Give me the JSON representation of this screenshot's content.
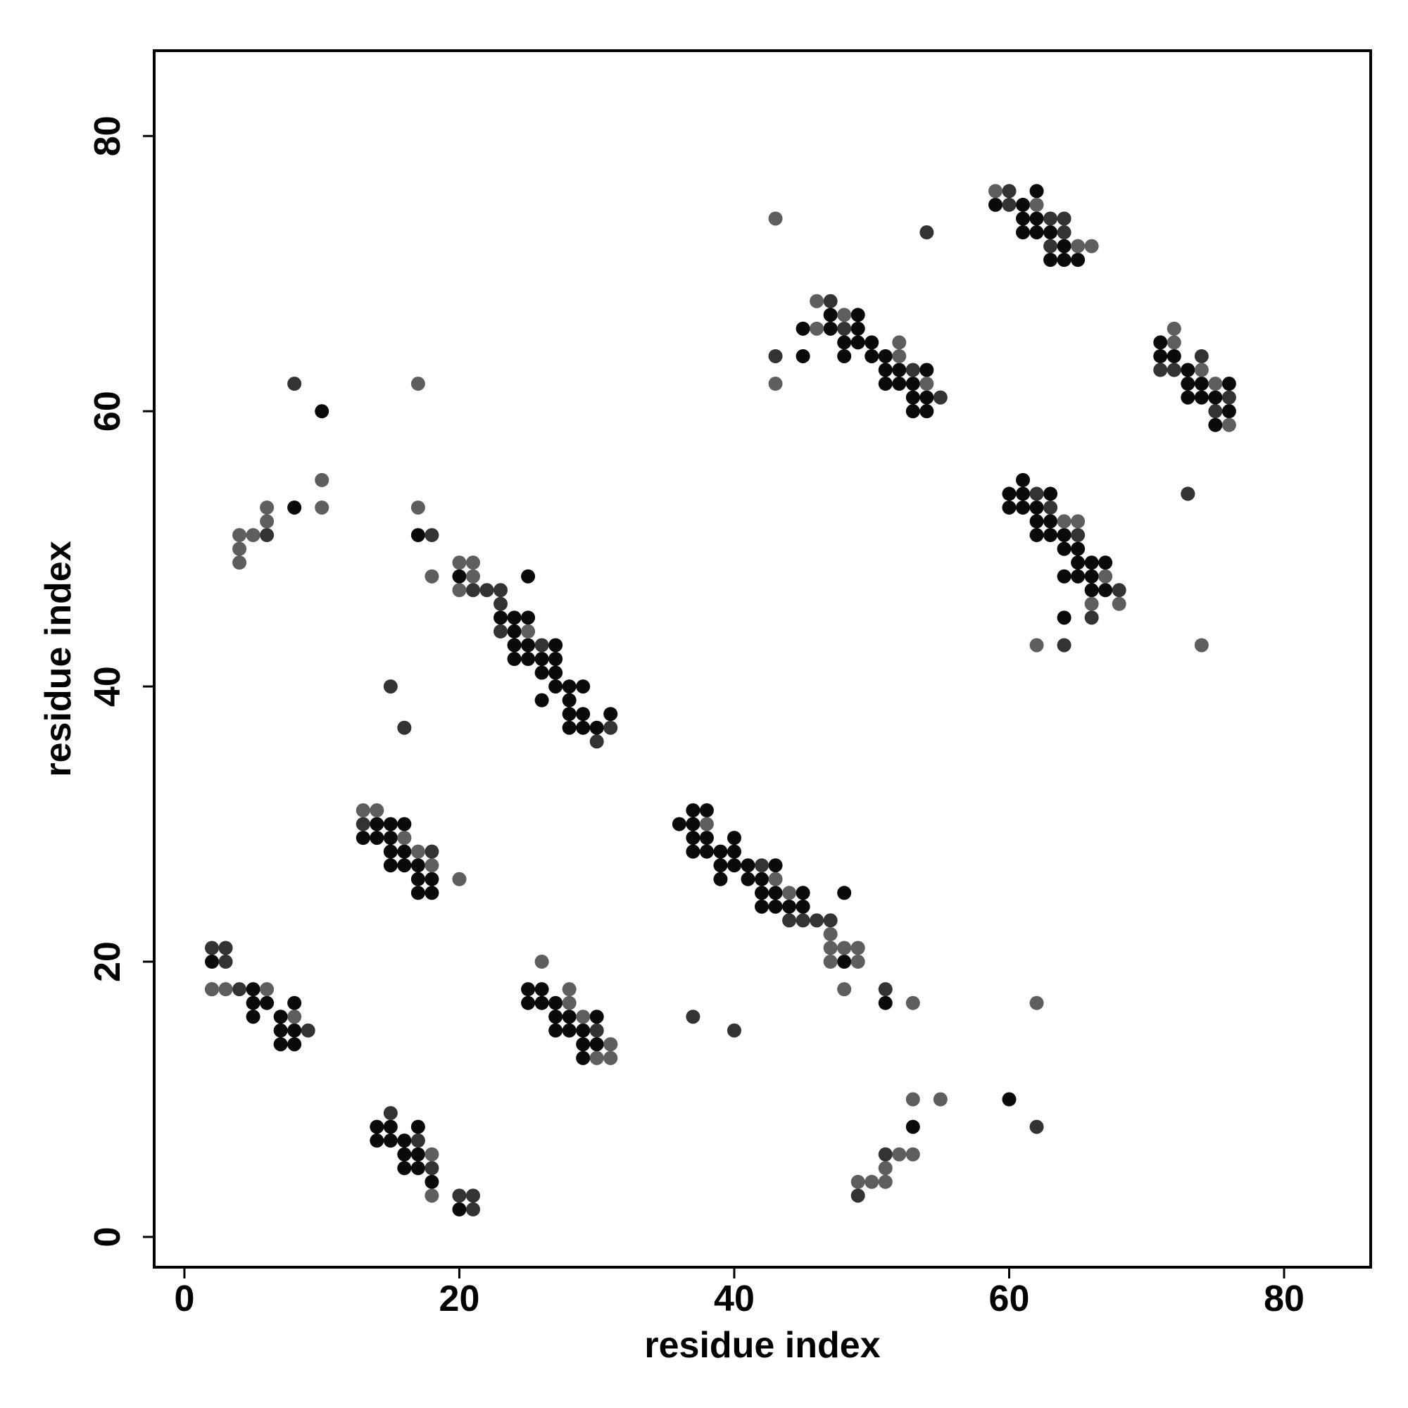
{
  "chart_data": {
    "type": "scatter",
    "xlabel": "residue index",
    "ylabel": "residue index",
    "xlim": [
      -2.2,
      86.3
    ],
    "ylim": [
      -2.2,
      86.2
    ],
    "xticks": [
      0,
      20,
      40,
      60,
      80
    ],
    "yticks": [
      0,
      20,
      40,
      60,
      80
    ],
    "series": [
      {
        "color": "#0a0a0a",
        "x": [
          2,
          5,
          5,
          6,
          8,
          5,
          7,
          7,
          8,
          7,
          8,
          14,
          15,
          16,
          13,
          14,
          15,
          15,
          16,
          15,
          16,
          17,
          17,
          18,
          17,
          18,
          14,
          15,
          17,
          14,
          15,
          16,
          16,
          17,
          16,
          17,
          18,
          20,
          25,
          26,
          25,
          26,
          27,
          27,
          28,
          30,
          27,
          28,
          29,
          29,
          30,
          29,
          20,
          25,
          23,
          24,
          25,
          24,
          24,
          25,
          27,
          24,
          25,
          26,
          27,
          26,
          27,
          27,
          28,
          29,
          26,
          28,
          28,
          29,
          31,
          28,
          29,
          30,
          10,
          8,
          17,
          37,
          38,
          36,
          37,
          37,
          38,
          40,
          37,
          38,
          39,
          40,
          39,
          40,
          41,
          43,
          39,
          41,
          42,
          42,
          43,
          45,
          48,
          42,
          43,
          44,
          45,
          48,
          51,
          60,
          53,
          47,
          49,
          45,
          47,
          49,
          48,
          49,
          50,
          45,
          48,
          50,
          51,
          51,
          52,
          54,
          51,
          52,
          53,
          53,
          54,
          53,
          54,
          62,
          59,
          61,
          61,
          62,
          61,
          62,
          63,
          64,
          63,
          64,
          65,
          71,
          71,
          72,
          73,
          73,
          74,
          76,
          73,
          74,
          75,
          76,
          75,
          61,
          60,
          61,
          63,
          60,
          61,
          62,
          62,
          63,
          62,
          63,
          64,
          64,
          65,
          65,
          66,
          67,
          64,
          65,
          66,
          66,
          67,
          64
        ],
        "y": [
          20,
          18,
          17,
          17,
          17,
          16,
          16,
          15,
          15,
          14,
          14,
          30,
          30,
          30,
          29,
          29,
          29,
          28,
          28,
          27,
          27,
          27,
          26,
          26,
          25,
          25,
          8,
          8,
          8,
          7,
          7,
          7,
          6,
          6,
          5,
          5,
          4,
          2,
          18,
          18,
          17,
          17,
          17,
          16,
          16,
          16,
          15,
          15,
          15,
          14,
          14,
          13,
          48,
          48,
          45,
          45,
          45,
          44,
          43,
          43,
          43,
          42,
          42,
          42,
          42,
          41,
          41,
          40,
          40,
          40,
          39,
          39,
          38,
          38,
          38,
          37,
          37,
          37,
          60,
          53,
          51,
          31,
          31,
          30,
          30,
          29,
          29,
          29,
          28,
          28,
          28,
          28,
          27,
          27,
          27,
          27,
          26,
          26,
          26,
          25,
          25,
          25,
          25,
          24,
          24,
          24,
          24,
          20,
          17,
          10,
          8,
          67,
          67,
          66,
          66,
          66,
          65,
          65,
          65,
          64,
          64,
          64,
          64,
          63,
          63,
          63,
          62,
          62,
          62,
          61,
          61,
          60,
          60,
          76,
          75,
          75,
          74,
          74,
          73,
          73,
          73,
          72,
          71,
          71,
          71,
          65,
          64,
          64,
          63,
          62,
          62,
          62,
          61,
          61,
          61,
          60,
          59,
          55,
          54,
          54,
          54,
          53,
          53,
          53,
          52,
          52,
          51,
          51,
          51,
          50,
          50,
          49,
          49,
          49,
          48,
          48,
          48,
          47,
          47,
          45
        ]
      },
      {
        "color": "#333333",
        "x": [
          2,
          3,
          3,
          2,
          4,
          9,
          13,
          18,
          15,
          17,
          18,
          20,
          21,
          21,
          30,
          31,
          21,
          22,
          23,
          23,
          23,
          26,
          31,
          30,
          15,
          16,
          8,
          6,
          18,
          42,
          44,
          45,
          46,
          47,
          51,
          37,
          40,
          62,
          49,
          51,
          47,
          48,
          43,
          53,
          55,
          54,
          60,
          60,
          63,
          64,
          64,
          63,
          73,
          74,
          71,
          72,
          76,
          75,
          73,
          62,
          63,
          65,
          68,
          66,
          64
        ],
        "y": [
          21,
          21,
          20,
          18,
          18,
          15,
          30,
          28,
          9,
          7,
          5,
          3,
          3,
          2,
          15,
          14,
          47,
          47,
          47,
          46,
          44,
          43,
          37,
          36,
          40,
          37,
          62,
          51,
          51,
          27,
          23,
          23,
          23,
          23,
          18,
          16,
          15,
          8,
          3,
          6,
          68,
          66,
          64,
          63,
          61,
          73,
          76,
          75,
          74,
          74,
          73,
          72,
          54,
          64,
          63,
          63,
          61,
          60,
          54,
          54,
          53,
          51,
          47,
          45,
          43
        ]
      },
      {
        "color": "#5e5e5e",
        "x": [
          2,
          3,
          6,
          8,
          13,
          14,
          16,
          17,
          18,
          20,
          18,
          18,
          26,
          28,
          28,
          29,
          31,
          30,
          31,
          20,
          21,
          21,
          20,
          25,
          17,
          10,
          4,
          4,
          4,
          5,
          6,
          6,
          10,
          17,
          18,
          38,
          43,
          44,
          47,
          47,
          48,
          49,
          47,
          49,
          48,
          53,
          62,
          53,
          55,
          52,
          53,
          51,
          49,
          50,
          51,
          46,
          48,
          46,
          52,
          52,
          43,
          54,
          43,
          59,
          62,
          65,
          66,
          72,
          72,
          74,
          75,
          76,
          74,
          64,
          65,
          67,
          66,
          68,
          62
        ],
        "y": [
          18,
          18,
          18,
          16,
          31,
          31,
          29,
          28,
          27,
          26,
          6,
          3,
          20,
          18,
          17,
          16,
          14,
          13,
          13,
          49,
          49,
          48,
          47,
          44,
          62,
          55,
          49,
          50,
          51,
          51,
          52,
          53,
          53,
          53,
          48,
          30,
          26,
          25,
          22,
          21,
          21,
          21,
          20,
          20,
          18,
          17,
          17,
          10,
          10,
          6,
          6,
          5,
          4,
          4,
          4,
          68,
          67,
          66,
          65,
          64,
          62,
          62,
          74,
          76,
          75,
          72,
          72,
          66,
          65,
          63,
          62,
          59,
          43,
          52,
          52,
          48,
          46,
          46,
          43
        ]
      }
    ]
  }
}
